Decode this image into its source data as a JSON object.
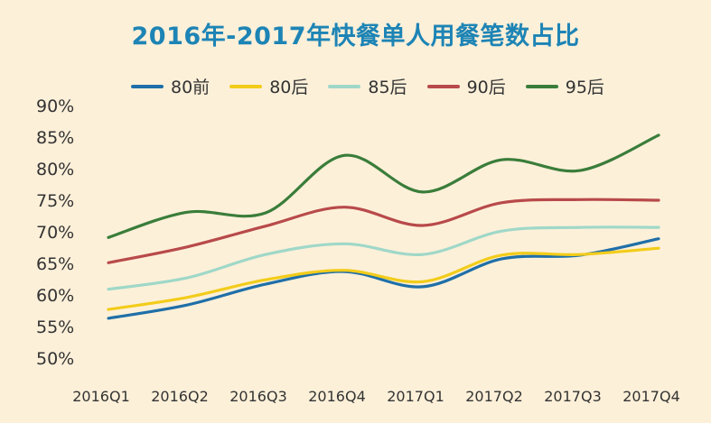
{
  "chart_data": {
    "type": "line",
    "title": "2016年-2017年快餐单人用餐笔数占比",
    "xlabel": "",
    "ylabel": "",
    "categories": [
      "2016Q1",
      "2016Q2",
      "2016Q3",
      "2016Q4",
      "2017Q1",
      "2017Q2",
      "2017Q3",
      "2017Q4"
    ],
    "ylim": [
      50,
      90
    ],
    "yticks": [
      "90%",
      "85%",
      "80%",
      "75%",
      "70%",
      "65%",
      "60%",
      "55%",
      "50%"
    ],
    "grid": false,
    "legend_position": "top",
    "smooth": true,
    "series": [
      {
        "name": "80前",
        "color": "#1f6fa8",
        "values": [
          56.3,
          58.4,
          61.7,
          63.7,
          61.3,
          65.7,
          66.3,
          68.9
        ]
      },
      {
        "name": "80后",
        "color": "#f2cc1a",
        "values": [
          57.7,
          59.6,
          62.4,
          63.9,
          62.1,
          66.3,
          66.4,
          67.4
        ]
      },
      {
        "name": "85后",
        "color": "#9fd8c8",
        "values": [
          60.9,
          62.7,
          66.4,
          68.1,
          66.4,
          70.1,
          70.7,
          70.7
        ]
      },
      {
        "name": "90后",
        "color": "#b84a4a",
        "values": [
          65.1,
          67.6,
          70.9,
          73.9,
          71.0,
          74.6,
          75.1,
          75.0
        ]
      },
      {
        "name": "95后",
        "color": "#3a7d3a",
        "values": [
          69.1,
          73.1,
          73.0,
          82.1,
          76.3,
          81.4,
          79.7,
          85.3
        ]
      }
    ]
  }
}
